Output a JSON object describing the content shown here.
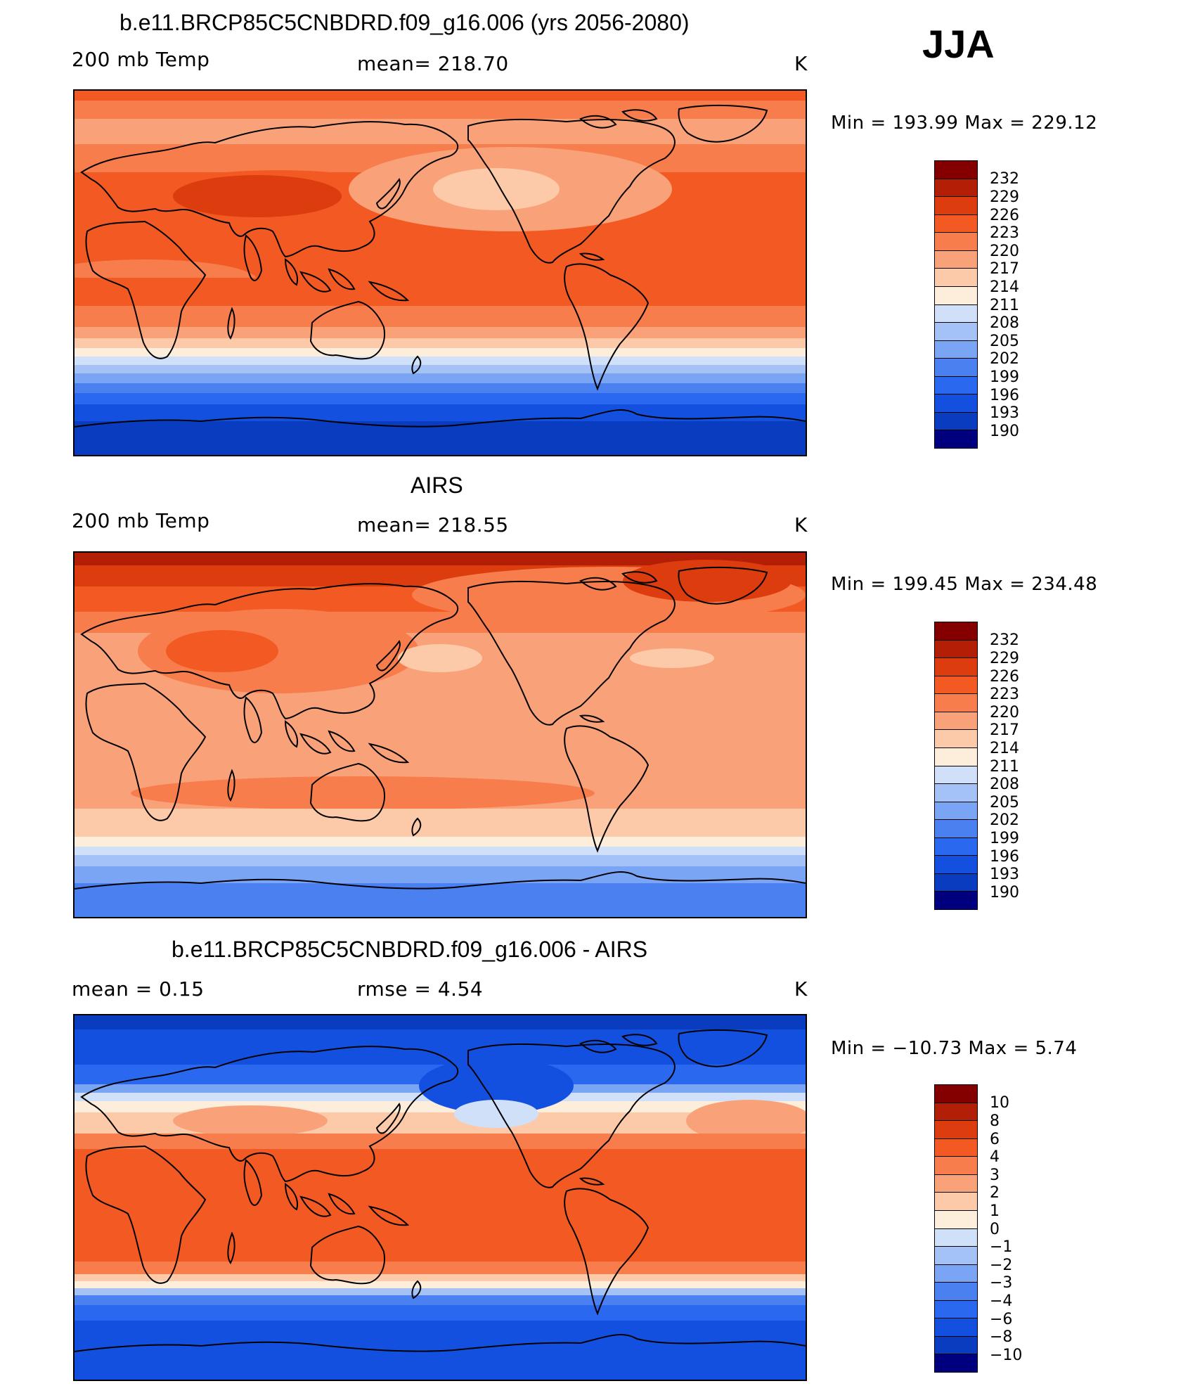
{
  "season": "JJA",
  "palette": [
    "#00007f",
    "#08269c",
    "#0a3cc0",
    "#1450e0",
    "#2a68f0",
    "#4a80f0",
    "#7aa4f4",
    "#a4c2f6",
    "#cfe0f8",
    "#fdeedc",
    "#fccaa8",
    "#f9a27a",
    "#f87d4d",
    "#f35a23",
    "#dc3c0e",
    "#b31f06",
    "#840000"
  ],
  "panels": [
    {
      "id": "model",
      "title": "b.e11.BRCP85C5CNBDRD.f09_g16.006 (yrs 2056-2080)",
      "left_label": "200 mb Temp",
      "center_label": "mean=  218.70",
      "units": "K",
      "minmax": "Min  =  193.99  Max  =  229.12",
      "colorbar_levels": [
        "232",
        "229",
        "226",
        "223",
        "220",
        "217",
        "214",
        "211",
        "208",
        "205",
        "202",
        "199",
        "196",
        "193",
        "190"
      ]
    },
    {
      "id": "obs",
      "title": "AIRS",
      "left_label": "200 mb Temp",
      "center_label": "mean=  218.55",
      "units": "K",
      "minmax": "Min  =  199.45  Max  =  234.48",
      "colorbar_levels": [
        "232",
        "229",
        "226",
        "223",
        "220",
        "217",
        "214",
        "211",
        "208",
        "205",
        "202",
        "199",
        "196",
        "193",
        "190"
      ]
    },
    {
      "id": "diff",
      "title": "b.e11.BRCP85C5CNBDRD.f09_g16.006 - AIRS",
      "left_label": "mean  =     0.15",
      "center_label": "rmse  =     4.54",
      "units": "K",
      "minmax": "Min  =  −10.73  Max  =     5.74",
      "colorbar_levels": [
        "10",
        "8",
        "6",
        "4",
        "3",
        "2",
        "1",
        "0",
        "−1",
        "−2",
        "−3",
        "−4",
        "−6",
        "−8",
        "−10"
      ]
    }
  ]
}
